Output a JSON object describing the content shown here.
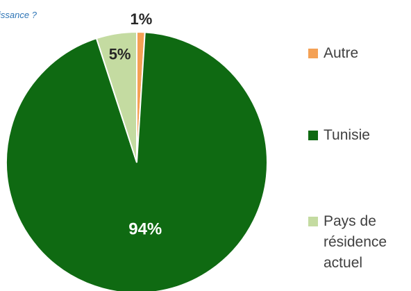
{
  "question_fragment": "issance ?",
  "colors": {
    "autre": "#f4a155",
    "tunisie": "#0f6a12",
    "pays": "#c4dba1",
    "question": "#2e75b6"
  },
  "chart_data": {
    "type": "pie",
    "title": "",
    "slices": [
      {
        "name": "Autre",
        "value": 1,
        "label": "1%",
        "color": "#f4a155"
      },
      {
        "name": "Tunisie",
        "value": 94,
        "label": "94%",
        "color": "#0f6a12"
      },
      {
        "name": "Pays de résidence actuel",
        "value": 5,
        "label": "5%",
        "color": "#c4dba1"
      }
    ],
    "legend_position": "right"
  },
  "legend": {
    "autre": "Autre",
    "tunisie": "Tunisie",
    "pays_line1": "Pays de",
    "pays_line2": "résidence",
    "pays_line3": "actuel"
  }
}
